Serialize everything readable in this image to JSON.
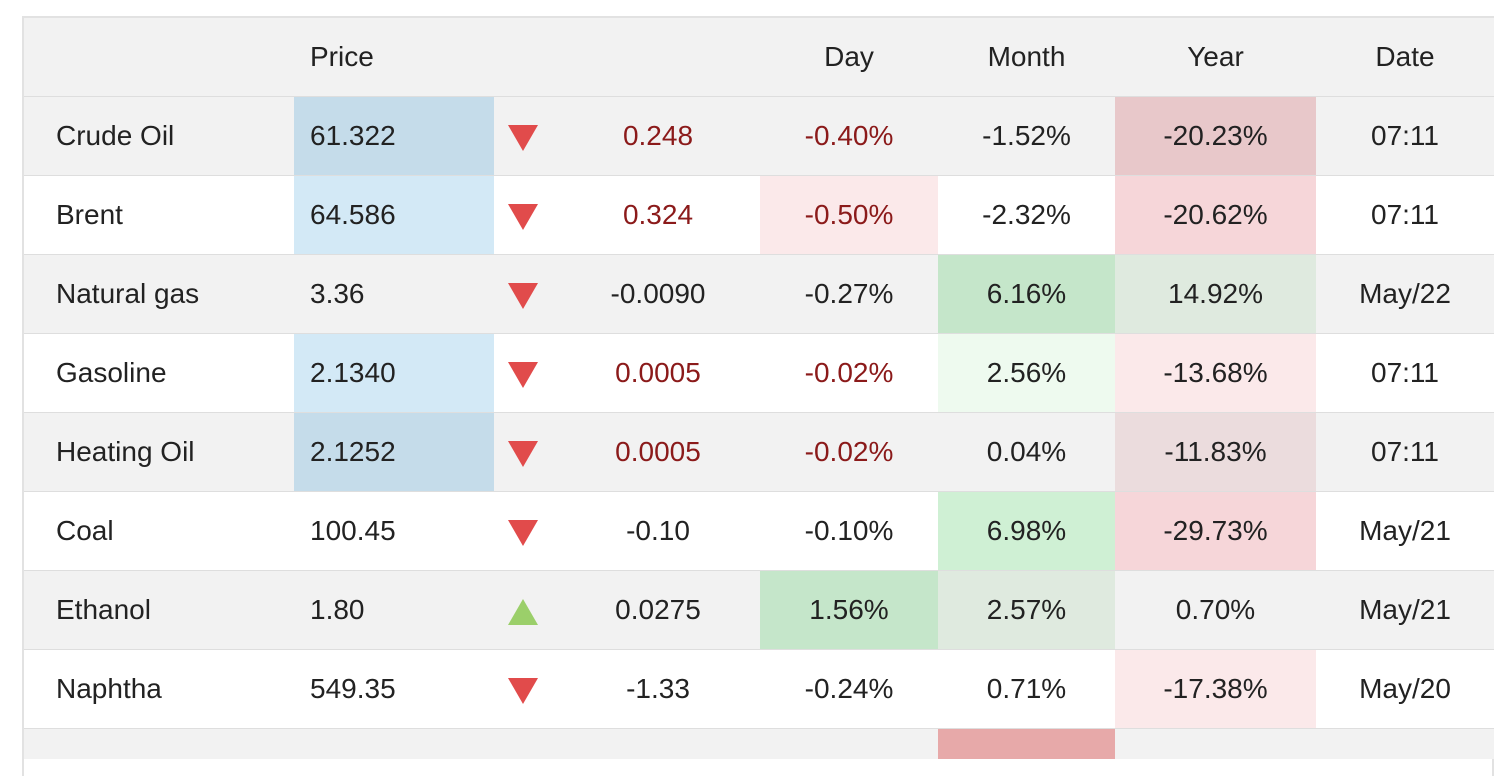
{
  "colors": {
    "price_highlight_odd": "#c5dcea",
    "price_highlight_even": "#d3e9f6",
    "red_strong_odd": "#e8c8ca",
    "red_strong_even": "#f6d6d9",
    "red_light": "#fbe9ea",
    "red_light_odd": "#ebdcdd",
    "green_strong": "#c5e6ca",
    "green_strong_even": "#cff0d4",
    "green_light": "#eefaef",
    "green_light_odd": "#dfeadf",
    "red_cut": "#e7a9a9",
    "negative_text": "#8b1a1a"
  },
  "header": {
    "name": "",
    "price": "Price",
    "arrow": "",
    "change": "",
    "day": "Day",
    "month": "Month",
    "year": "Year",
    "date": "Date"
  },
  "rows": [
    {
      "name": "Crude Oil",
      "price": "61.322",
      "direction": "down",
      "change": "0.248",
      "day": "-0.40%",
      "month": "-1.52%",
      "year": "-20.23%",
      "date": "07:11"
    },
    {
      "name": "Brent",
      "price": "64.586",
      "direction": "down",
      "change": "0.324",
      "day": "-0.50%",
      "month": "-2.32%",
      "year": "-20.62%",
      "date": "07:11"
    },
    {
      "name": "Natural gas",
      "price": "3.36",
      "direction": "down",
      "change": "-0.0090",
      "day": "-0.27%",
      "month": "6.16%",
      "year": "14.92%",
      "date": "May/22"
    },
    {
      "name": "Gasoline",
      "price": "2.1340",
      "direction": "down",
      "change": "0.0005",
      "day": "-0.02%",
      "month": "2.56%",
      "year": "-13.68%",
      "date": "07:11"
    },
    {
      "name": "Heating Oil",
      "price": "2.1252",
      "direction": "down",
      "change": "0.0005",
      "day": "-0.02%",
      "month": "0.04%",
      "year": "-11.83%",
      "date": "07:11"
    },
    {
      "name": "Coal",
      "price": "100.45",
      "direction": "down",
      "change": "-0.10",
      "day": "-0.10%",
      "month": "6.98%",
      "year": "-29.73%",
      "date": "May/21"
    },
    {
      "name": "Ethanol",
      "price": "1.80",
      "direction": "up",
      "change": "0.0275",
      "day": "1.56%",
      "month": "2.57%",
      "year": "0.70%",
      "date": "May/21"
    },
    {
      "name": "Naphtha",
      "price": "549.35",
      "direction": "down",
      "change": "-1.33",
      "day": "-0.24%",
      "month": "0.71%",
      "year": "-17.38%",
      "date": "May/20"
    }
  ]
}
